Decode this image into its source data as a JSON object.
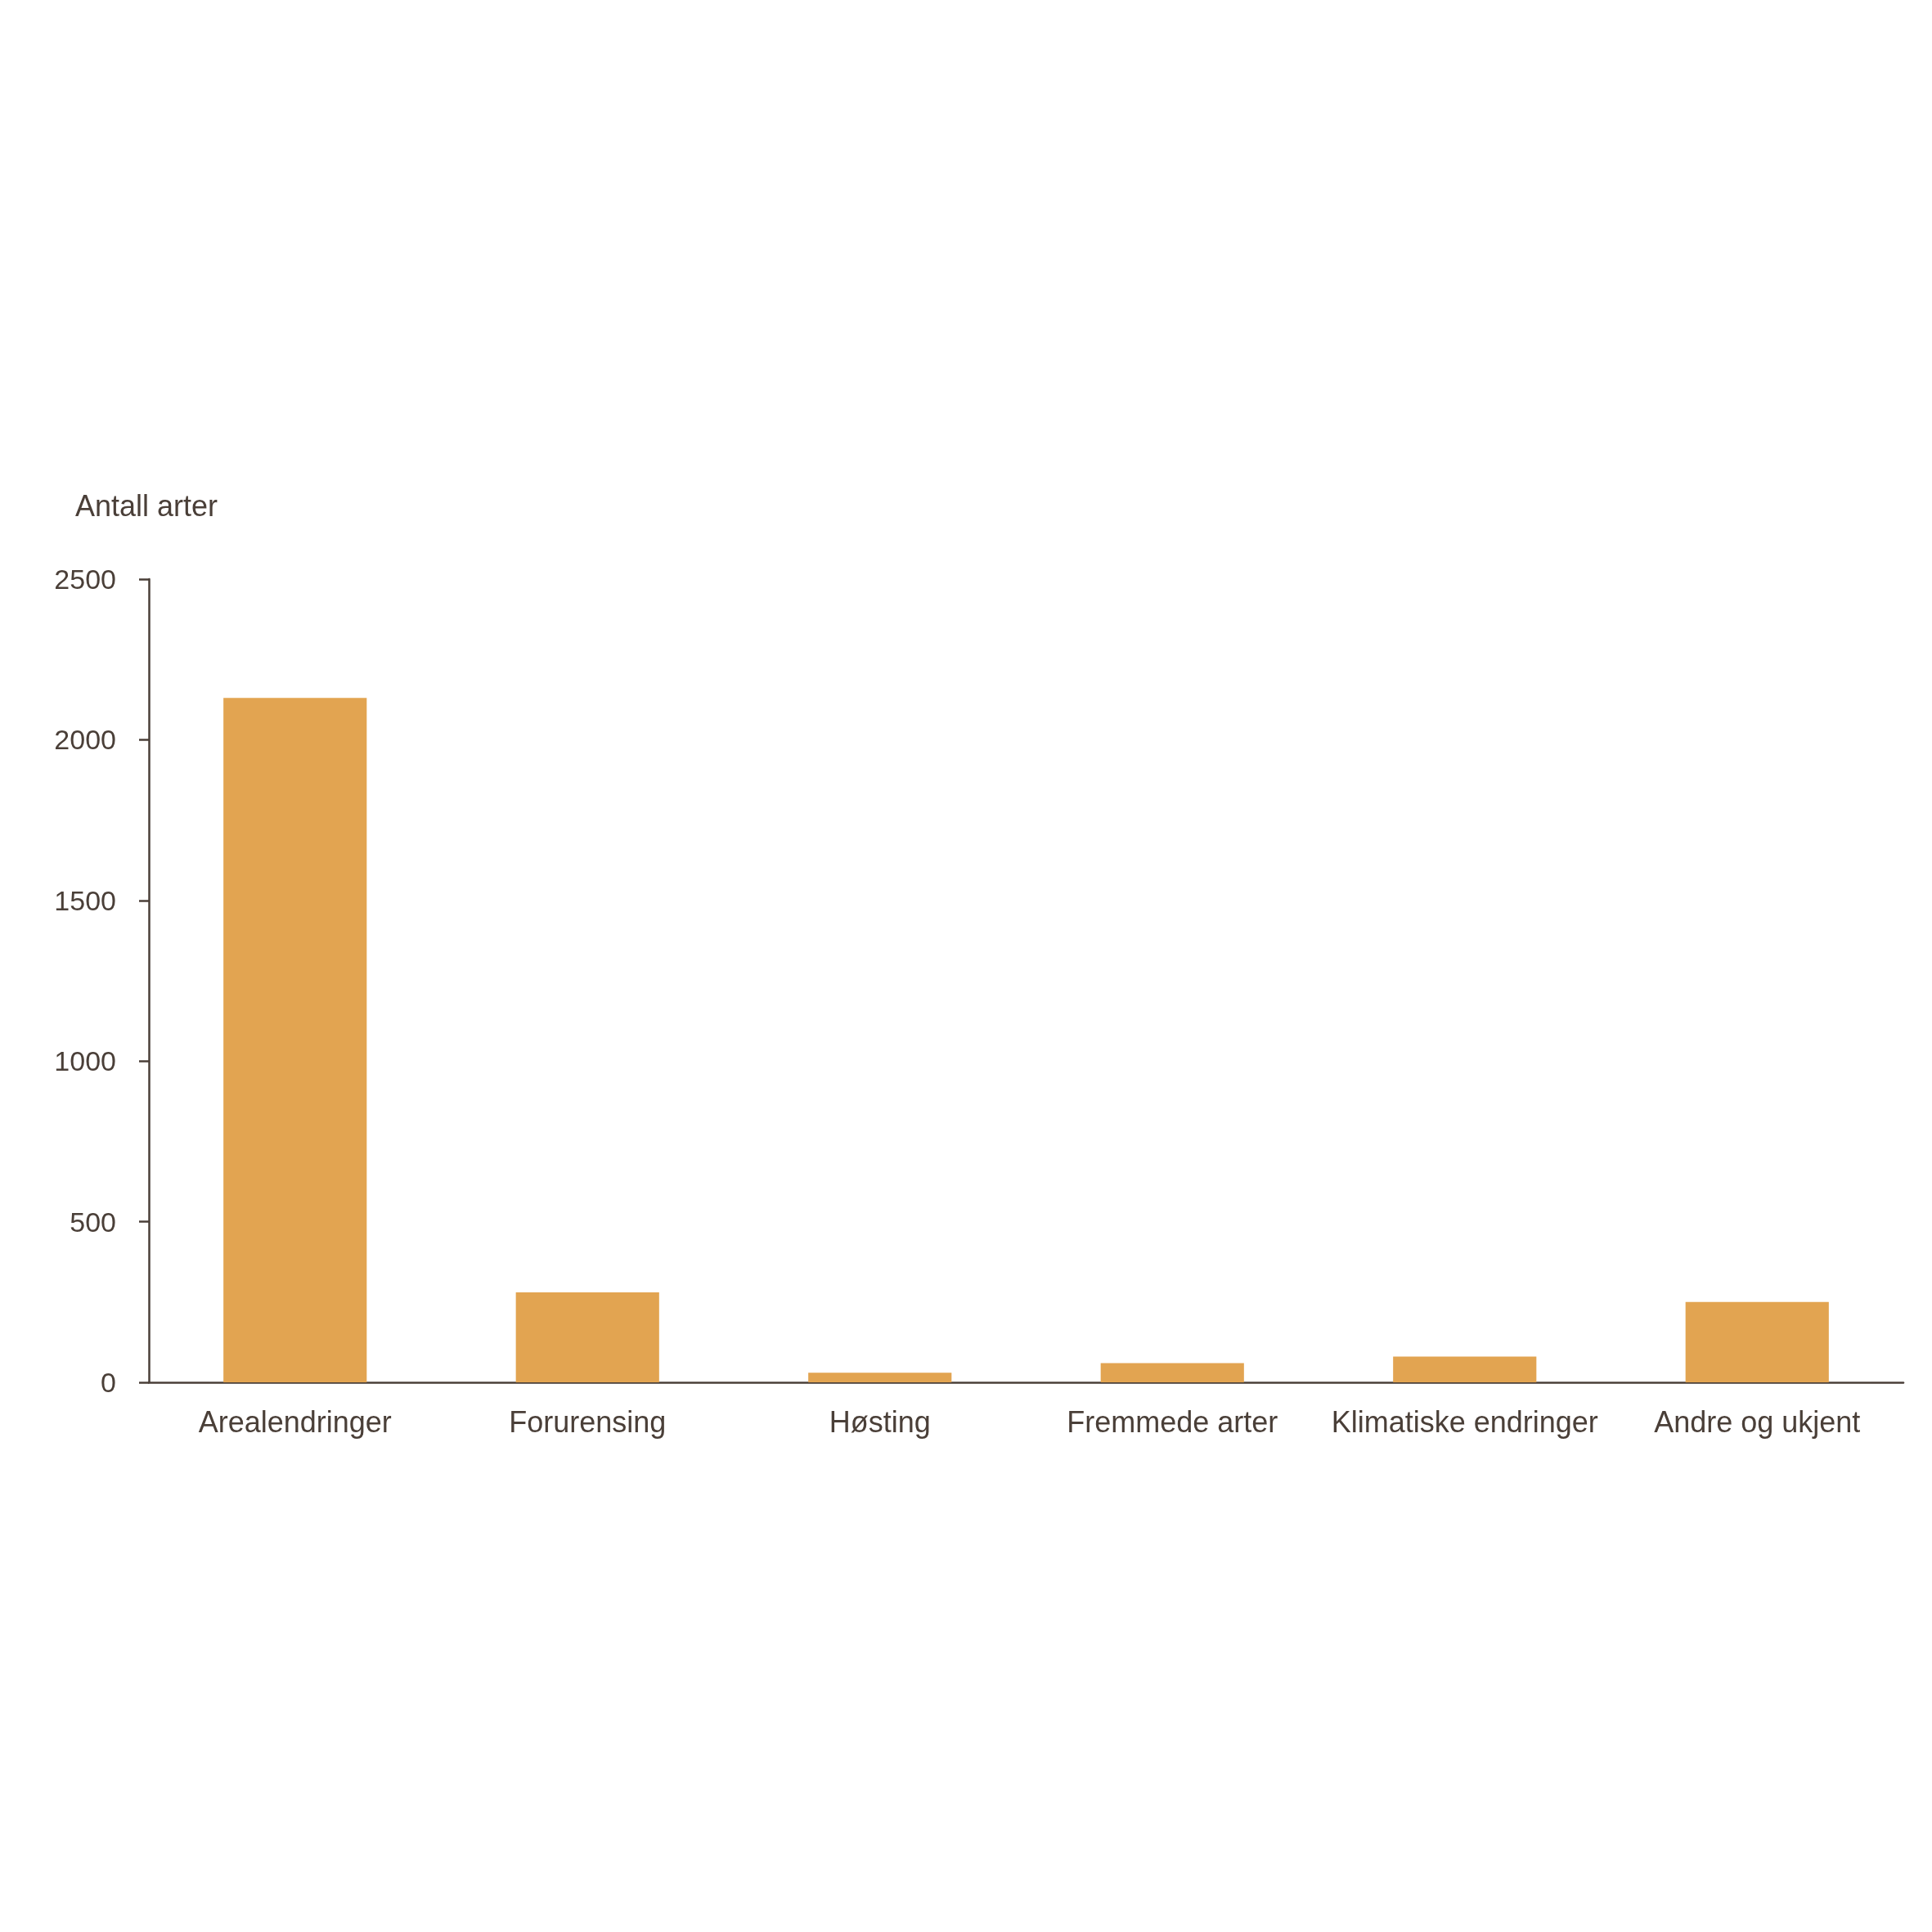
{
  "chart_data": {
    "type": "bar",
    "ylabel": "Antall arter",
    "categories": [
      "Arealendringer",
      "Forurensing",
      "Høsting",
      "Fremmede arter",
      "Klimatiske endringer",
      "Andre og ukjent"
    ],
    "values": [
      2130,
      280,
      30,
      60,
      80,
      250
    ],
    "color": "#e2a451",
    "ylim": [
      0,
      2500
    ],
    "yticks": [
      0,
      500,
      1000,
      1500,
      2000,
      2500
    ],
    "grid": false
  }
}
